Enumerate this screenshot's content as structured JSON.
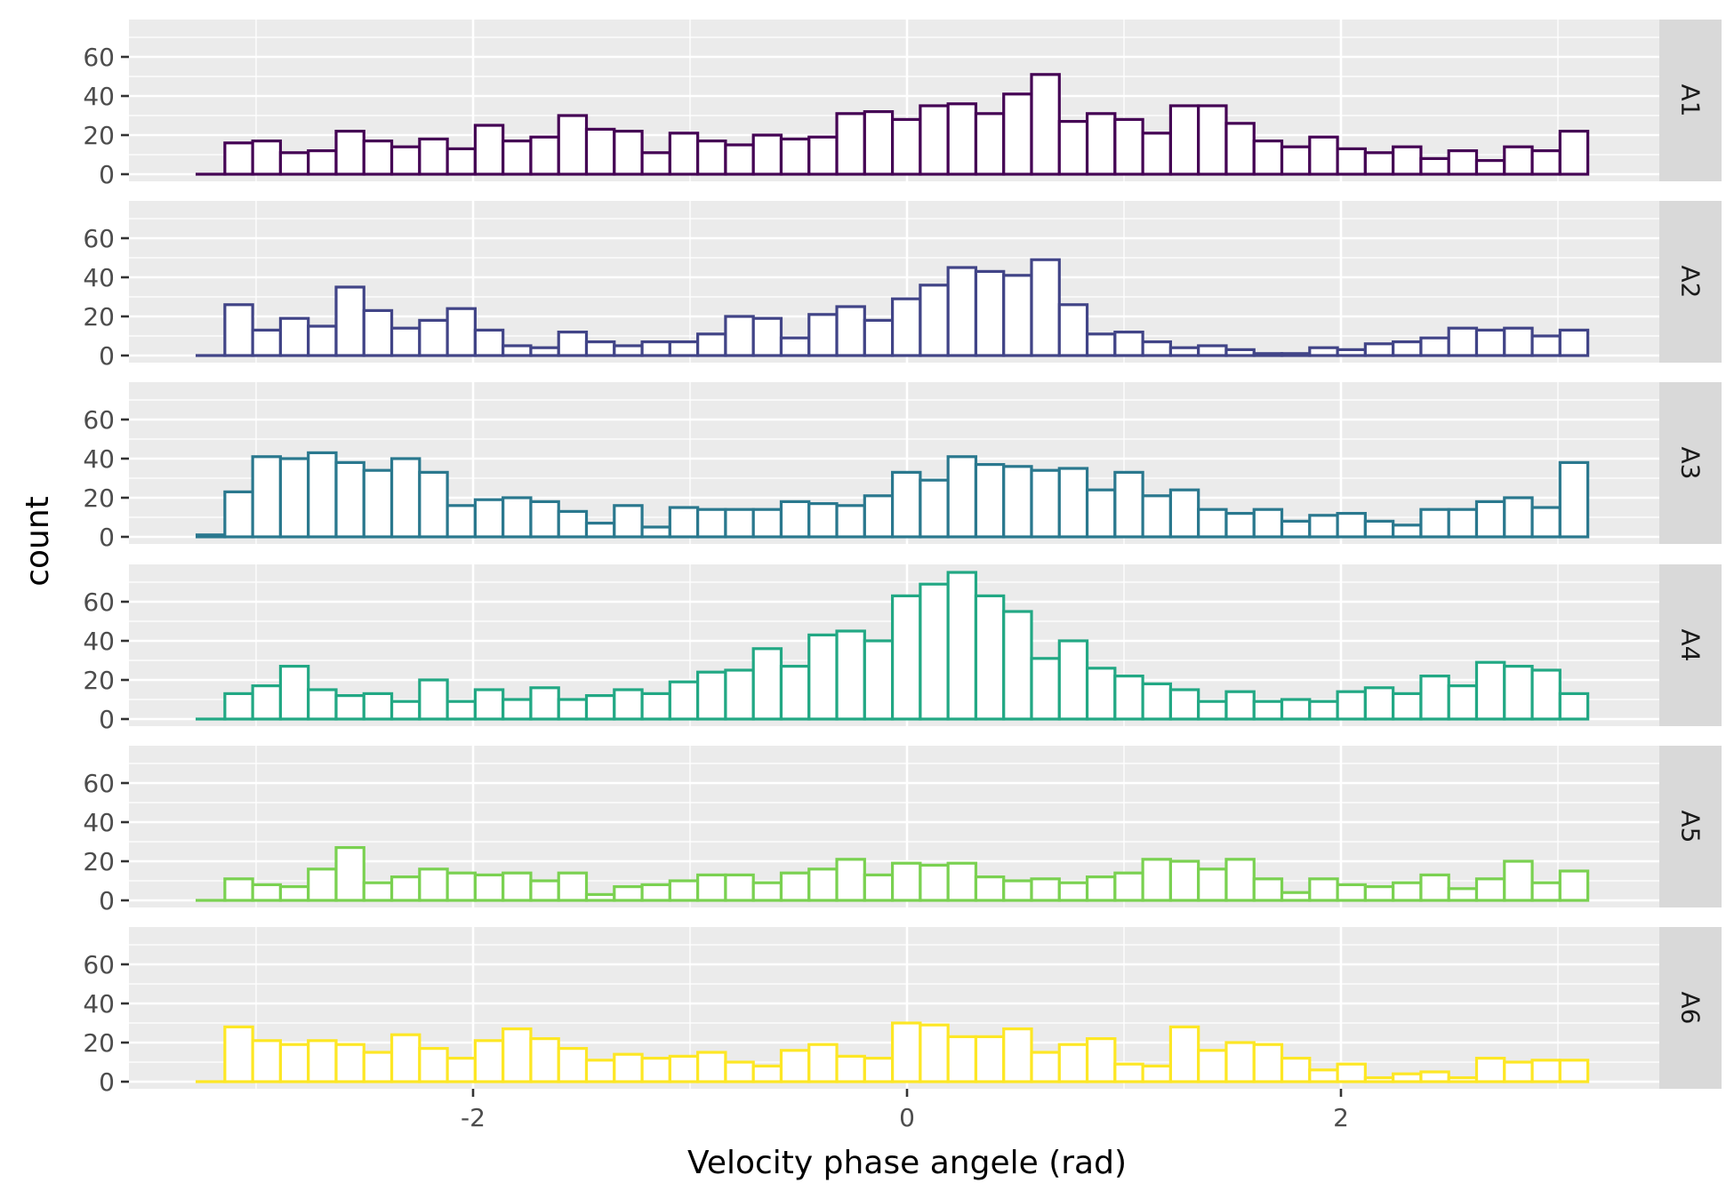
{
  "chart_data": {
    "type": "bar",
    "subtype": "faceted-histogram",
    "xlabel": "Velocity phase angele (rad)",
    "ylabel": "count",
    "xlim": [
      -3.3,
      3.45
    ],
    "ylim": [
      0,
      76
    ],
    "xticks": [
      -2,
      0,
      2
    ],
    "xtick_labels": [
      "-2",
      "0",
      "2"
    ],
    "yticks": [
      0,
      20,
      40,
      60
    ],
    "ytick_labels": [
      "0",
      "20",
      "40",
      "60"
    ],
    "bin_start": -3.2722,
    "bin_width": 0.1282,
    "fill": "#ffffff",
    "panel_background": "#ebebeb",
    "strip_background": "#d9d9d9",
    "grid": true,
    "legend": "none",
    "facets": [
      {
        "label": "A1",
        "color": "#440154",
        "values": [
          0,
          16,
          17,
          11,
          12,
          22,
          17,
          14,
          18,
          13,
          25,
          17,
          19,
          30,
          23,
          22,
          11,
          21,
          17,
          15,
          20,
          18,
          19,
          31,
          32,
          28,
          35,
          36,
          31,
          41,
          51,
          27,
          31,
          28,
          21,
          35,
          35,
          26,
          17,
          14,
          19,
          13,
          11,
          14,
          8,
          12,
          7,
          14,
          12,
          22
        ]
      },
      {
        "label": "A2",
        "color": "#414487",
        "values": [
          0,
          26,
          13,
          19,
          15,
          35,
          23,
          14,
          18,
          24,
          13,
          5,
          4,
          12,
          7,
          5,
          7,
          7,
          11,
          20,
          19,
          9,
          21,
          25,
          18,
          29,
          36,
          45,
          43,
          41,
          49,
          26,
          11,
          12,
          7,
          4,
          5,
          3,
          1,
          1,
          4,
          3,
          6,
          7,
          9,
          14,
          13,
          14,
          10,
          13
        ]
      },
      {
        "label": "A3",
        "color": "#2a788e",
        "values": [
          1,
          23,
          41,
          40,
          43,
          38,
          34,
          40,
          33,
          16,
          19,
          20,
          18,
          13,
          7,
          16,
          5,
          15,
          14,
          14,
          14,
          18,
          17,
          16,
          21,
          33,
          29,
          41,
          37,
          36,
          34,
          35,
          24,
          33,
          21,
          24,
          14,
          12,
          14,
          8,
          11,
          12,
          8,
          6,
          14,
          14,
          18,
          20,
          15,
          38
        ]
      },
      {
        "label": "A4",
        "color": "#22a884",
        "values": [
          0,
          13,
          17,
          27,
          15,
          12,
          13,
          9,
          20,
          9,
          15,
          10,
          16,
          10,
          12,
          15,
          13,
          19,
          24,
          25,
          36,
          27,
          43,
          45,
          40,
          63,
          69,
          75,
          63,
          55,
          31,
          40,
          26,
          22,
          18,
          15,
          9,
          14,
          9,
          10,
          9,
          14,
          16,
          13,
          22,
          17,
          29,
          27,
          25,
          13
        ]
      },
      {
        "label": "A5",
        "color": "#7ad151",
        "values": [
          0,
          11,
          8,
          7,
          16,
          27,
          9,
          12,
          16,
          14,
          13,
          14,
          10,
          14,
          3,
          7,
          8,
          10,
          13,
          13,
          9,
          14,
          16,
          21,
          13,
          19,
          18,
          19,
          12,
          10,
          11,
          9,
          12,
          14,
          21,
          20,
          16,
          21,
          11,
          4,
          11,
          8,
          7,
          9,
          13,
          6,
          11,
          20,
          9,
          15
        ]
      },
      {
        "label": "A6",
        "color": "#fde725",
        "values": [
          0,
          28,
          21,
          19,
          21,
          19,
          15,
          24,
          17,
          12,
          21,
          27,
          22,
          17,
          11,
          14,
          12,
          13,
          15,
          10,
          8,
          16,
          19,
          13,
          12,
          30,
          29,
          23,
          23,
          27,
          15,
          19,
          22,
          9,
          8,
          28,
          16,
          20,
          19,
          12,
          6,
          9,
          2,
          4,
          5,
          2,
          12,
          10,
          11,
          11
        ]
      }
    ]
  }
}
